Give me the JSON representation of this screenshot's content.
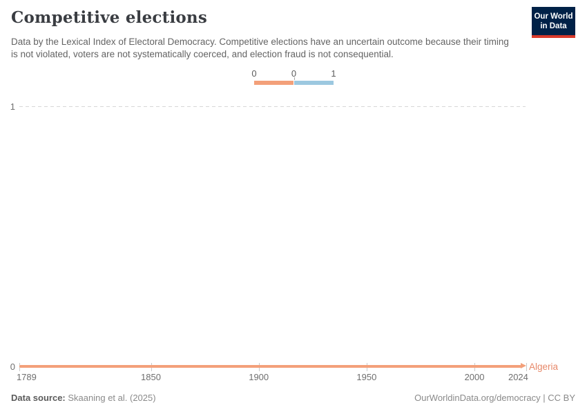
{
  "header": {
    "title": "Competitive elections",
    "subtitle": "Data by the Lexical Index of Electoral Democracy. Competitive elections have an uncertain outcome because their timing is not violated, voters are not systematically coerced, and election fraud is not consequential.",
    "logo": {
      "line1": "Our World",
      "line2": "in Data"
    }
  },
  "legend": {
    "edge_labels": [
      "0",
      "0",
      "1"
    ],
    "segments": [
      {
        "value": 0,
        "color": "#f3a07a"
      },
      {
        "value": 1,
        "color": "#9cc8e0"
      }
    ]
  },
  "chart_data": {
    "type": "line",
    "title": "Competitive elections",
    "xlabel": "",
    "ylabel": "",
    "x_range": [
      1789,
      2024
    ],
    "y_range": [
      0,
      1
    ],
    "x_ticks": [
      1789,
      1850,
      1900,
      1950,
      2000,
      2024
    ],
    "y_ticks": [
      0,
      1
    ],
    "grid": "dashed line at y=1 only, solid data line at y=0",
    "legend_position": "top-center",
    "series": [
      {
        "name": "Algeria",
        "color": "#f3a07a",
        "label_color": "#e78869",
        "note": "constant value 0 for every year 1789-2024",
        "points": [
          {
            "x": 1789,
            "y": 0
          },
          {
            "x": 2024,
            "y": 0
          }
        ]
      }
    ]
  },
  "footer": {
    "datasource_label": "Data source:",
    "datasource_value": "Skaaning et al. (2025)",
    "link": "OurWorldinData.org/democracy | CC BY"
  }
}
